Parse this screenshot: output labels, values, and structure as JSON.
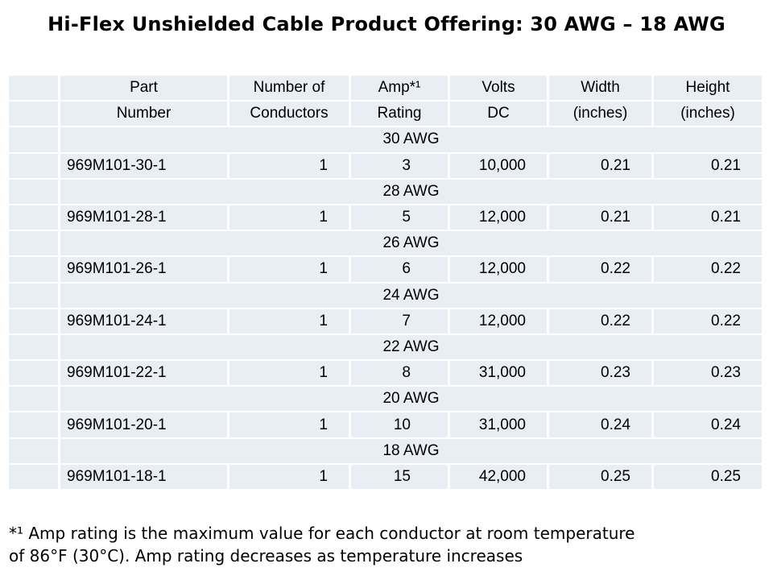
{
  "title": "Hi-Flex Unshielded Cable Product Offering: 30 AWG – 18 AWG",
  "headers": [
    [
      "Part",
      "Number of",
      "Amp*¹",
      "Volts",
      "Width",
      "Height"
    ],
    [
      "Number",
      "Conductors",
      "Rating",
      "DC",
      "(inches)",
      "(inches)"
    ]
  ],
  "groups": [
    {
      "gauge": "30 AWG",
      "row": {
        "part": "969M101-30-1",
        "conductors": "1",
        "amp": "3",
        "volts": "10,000",
        "width": "0.21",
        "height": "0.21"
      }
    },
    {
      "gauge": "28 AWG",
      "row": {
        "part": "969M101-28-1",
        "conductors": "1",
        "amp": "5",
        "volts": "12,000",
        "width": "0.21",
        "height": "0.21"
      }
    },
    {
      "gauge": "26 AWG",
      "row": {
        "part": "969M101-26-1",
        "conductors": "1",
        "amp": "6",
        "volts": "12,000",
        "width": "0.22",
        "height": "0.22"
      }
    },
    {
      "gauge": "24 AWG",
      "row": {
        "part": "969M101-24-1",
        "conductors": "1",
        "amp": "7",
        "volts": "12,000",
        "width": "0.22",
        "height": "0.22"
      }
    },
    {
      "gauge": "22 AWG",
      "row": {
        "part": "969M101-22-1",
        "conductors": "1",
        "amp": "8",
        "volts": "31,000",
        "width": "0.23",
        "height": "0.23"
      }
    },
    {
      "gauge": "20 AWG",
      "row": {
        "part": "969M101-20-1",
        "conductors": "1",
        "amp": "10",
        "volts": "31,000",
        "width": "0.24",
        "height": "0.24"
      }
    },
    {
      "gauge": "18 AWG",
      "row": {
        "part": "969M101-18-1",
        "conductors": "1",
        "amp": "15",
        "volts": "42,000",
        "width": "0.25",
        "height": "0.25"
      }
    }
  ],
  "footnote": {
    "line1": "*¹ Amp rating is the maximum value for each conductor at room temperature",
    "line2": "of 86°F (30°C).  Amp rating decreases as temperature increases"
  }
}
